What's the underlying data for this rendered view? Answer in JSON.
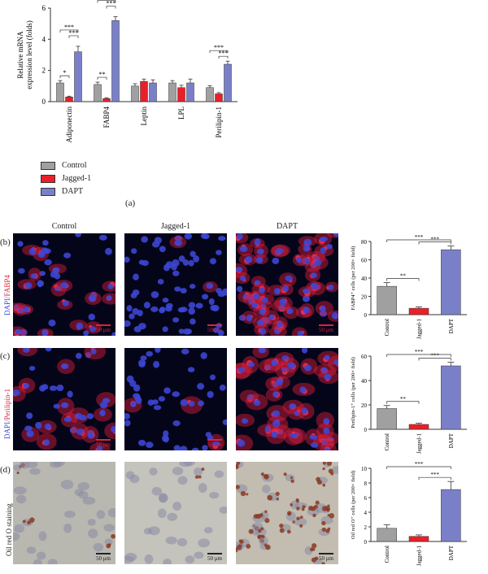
{
  "colors": {
    "control": "#a0a0a0",
    "jagged": "#e8202a",
    "dapt": "#7a80c8",
    "nucleus": "#3c46d2",
    "fabp4_signal": "#e0203a",
    "oil_red": "#8a3a22"
  },
  "panel_a": {
    "letter": "(a)",
    "legend": [
      "Control",
      "Jagged-1",
      "DAPT"
    ]
  },
  "panel_b": {
    "letter": "(b)",
    "stain_label_dapi": "DAPI/",
    "stain_label_marker": "FABP4"
  },
  "panel_c": {
    "letter": "(c)",
    "stain_label_dapi": "DAPI/",
    "stain_label_marker": "Perilipin-1"
  },
  "panel_d": {
    "letter": "(d)",
    "stain_label": "Oil red O staining"
  },
  "column_labels": [
    "Control",
    "Jagged-1",
    "DAPT"
  ],
  "scale_bar_text": "50 μm",
  "chart_data": [
    {
      "id": "mrna",
      "type": "bar",
      "ylabel": "Relative mRNA expression level (folds)",
      "ylabel_lines": [
        "Relative mRNA",
        "expression level (folds)"
      ],
      "ylim": [
        0,
        6
      ],
      "yticks": [
        "0",
        "2",
        "4",
        "6"
      ],
      "categories": [
        "Adiponectin",
        "FABP4",
        "Leptin",
        "LPL",
        "Perilipin-1"
      ],
      "series": [
        {
          "name": "Control",
          "values": [
            1.2,
            1.1,
            1.0,
            1.2,
            0.9
          ],
          "errors": [
            0.15,
            0.15,
            0.15,
            0.15,
            0.12
          ]
        },
        {
          "name": "Jagged-1",
          "values": [
            0.3,
            0.2,
            1.3,
            0.9,
            0.5
          ],
          "errors": [
            0.05,
            0.05,
            0.15,
            0.15,
            0.08
          ]
        },
        {
          "name": "DAPT",
          "values": [
            3.2,
            5.2,
            1.2,
            1.2,
            2.4
          ],
          "errors": [
            0.35,
            0.25,
            0.2,
            0.25,
            0.2
          ]
        }
      ],
      "significance": [
        {
          "cat": 0,
          "from": 0,
          "to": 1,
          "label": "*"
        },
        {
          "cat": 0,
          "from": 1,
          "to": 2,
          "label": "***"
        },
        {
          "cat": 0,
          "from": 0,
          "to": 2,
          "label": "***"
        },
        {
          "cat": 1,
          "from": 0,
          "to": 1,
          "label": "**"
        },
        {
          "cat": 1,
          "from": 1,
          "to": 2,
          "label": "***"
        },
        {
          "cat": 1,
          "from": 0,
          "to": 2,
          "label": "***"
        },
        {
          "cat": 4,
          "from": 1,
          "to": 2,
          "label": "***"
        },
        {
          "cat": 4,
          "from": 0,
          "to": 2,
          "label": "***"
        }
      ]
    },
    {
      "id": "fabp4",
      "type": "bar",
      "ylabel": "FABP4⁺ cells (per 200× field)",
      "ylim": [
        0,
        80
      ],
      "yticks": [
        "0",
        "20",
        "40",
        "60",
        "80"
      ],
      "categories": [
        "Control",
        "Jagged-1",
        "DAPT"
      ],
      "values": [
        31,
        7,
        71
      ],
      "errors": [
        4,
        1.5,
        4
      ],
      "significance": [
        {
          "from": 0,
          "to": 1,
          "label": "**"
        },
        {
          "from": 1,
          "to": 2,
          "label": "***"
        },
        {
          "from": 0,
          "to": 2,
          "label": "***"
        }
      ]
    },
    {
      "id": "perilipin",
      "type": "bar",
      "ylabel": "Perilipin-1⁺ cells (per 200× field)",
      "ylim": [
        0,
        60
      ],
      "yticks": [
        "0",
        "20",
        "40",
        "60"
      ],
      "categories": [
        "Control",
        "Jagged-1",
        "DAPT"
      ],
      "values": [
        17,
        4,
        52
      ],
      "errors": [
        2.5,
        1,
        3
      ],
      "significance": [
        {
          "from": 0,
          "to": 1,
          "label": "**"
        },
        {
          "from": 1,
          "to": 2,
          "label": "***"
        },
        {
          "from": 0,
          "to": 2,
          "label": "***"
        }
      ]
    },
    {
      "id": "oilred",
      "type": "bar",
      "ylabel": "Oil red O⁺ cells (per 200× field)",
      "ylim": [
        0,
        10
      ],
      "yticks": [
        "0",
        "2",
        "4",
        "6",
        "8",
        "10"
      ],
      "categories": [
        "Control",
        "Jagged-1",
        "DAPT"
      ],
      "values": [
        1.8,
        0.7,
        7.1
      ],
      "errors": [
        0.5,
        0.2,
        1.1
      ],
      "significance": [
        {
          "from": 1,
          "to": 2,
          "label": "***"
        },
        {
          "from": 0,
          "to": 2,
          "label": "***"
        }
      ]
    }
  ]
}
